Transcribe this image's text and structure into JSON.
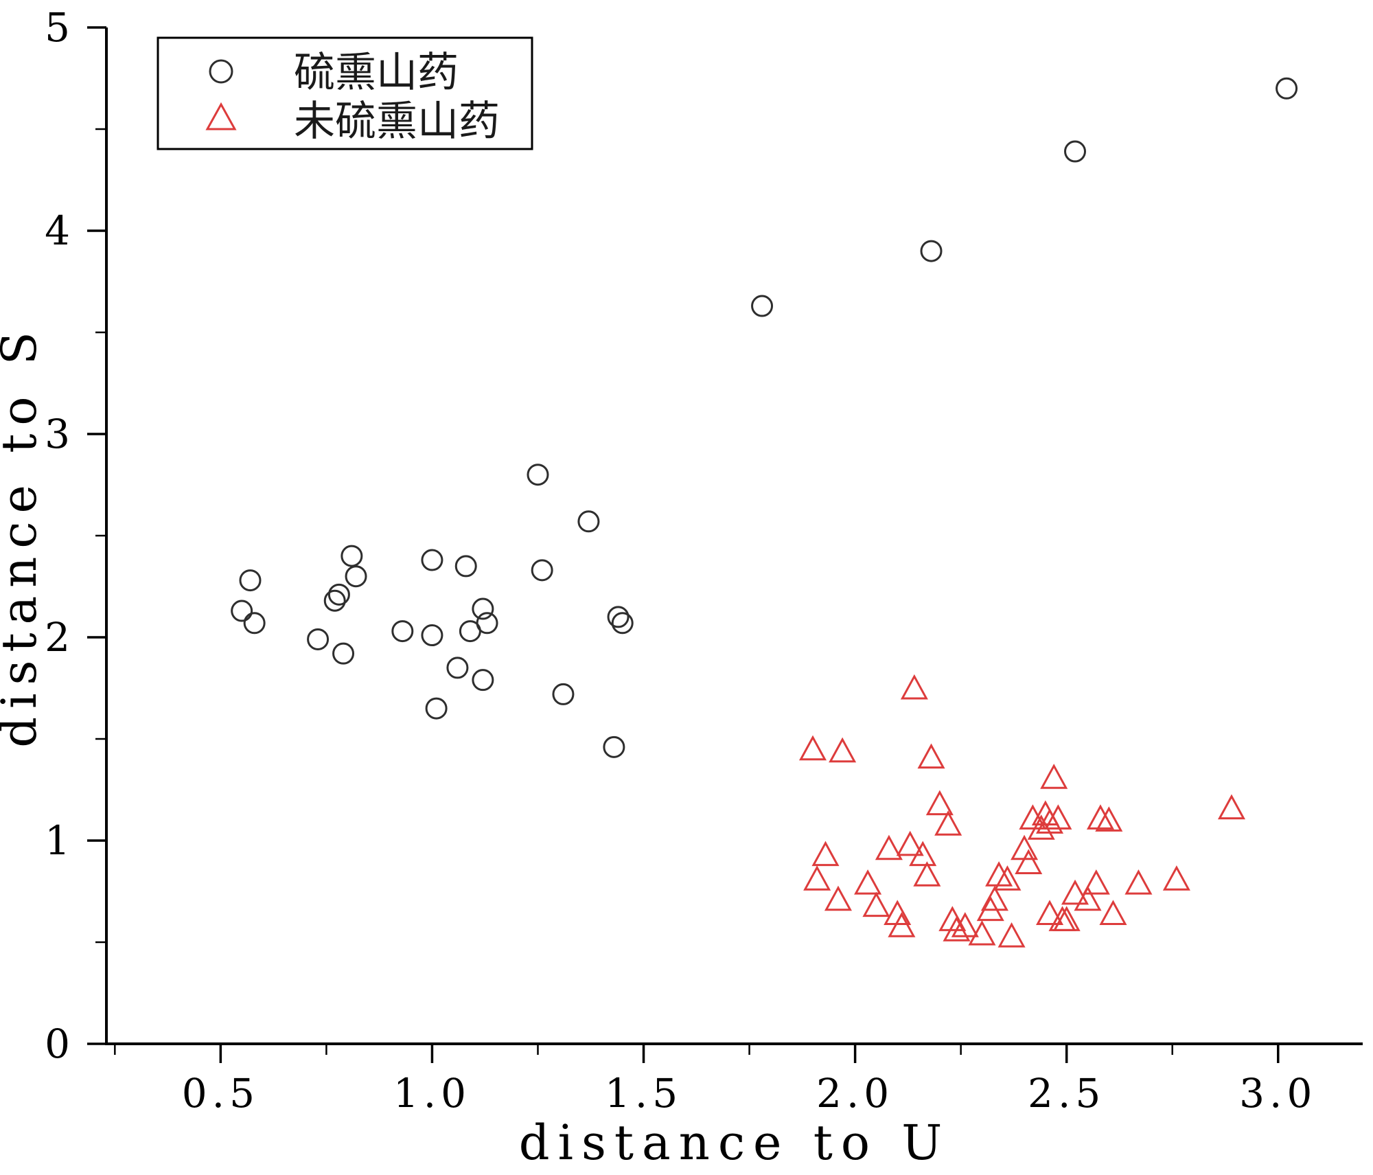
{
  "figure": {
    "background": "#ffffff",
    "axis_color": "#000000"
  },
  "chart_data": {
    "type": "scatter",
    "title": "",
    "xlabel": "distance to U",
    "ylabel": "distance to S",
    "xlim": [
      0.23,
      3.2
    ],
    "ylim": [
      0,
      5
    ],
    "x_ticks": [
      0.5,
      1.0,
      1.5,
      2.0,
      2.5,
      3.0
    ],
    "y_ticks": [
      0,
      1,
      2,
      3,
      4,
      5
    ],
    "x_minor_step": 0.25,
    "y_minor_step": 0.5,
    "grid": false,
    "legend_position": "top-left",
    "series": [
      {
        "name": "硫熏山药",
        "marker": "circle",
        "color": "#2e2e2e",
        "points": [
          [
            0.55,
            2.13
          ],
          [
            0.57,
            2.28
          ],
          [
            0.58,
            2.07
          ],
          [
            0.73,
            1.99
          ],
          [
            0.77,
            2.18
          ],
          [
            0.78,
            2.21
          ],
          [
            0.79,
            1.92
          ],
          [
            0.81,
            2.4
          ],
          [
            0.82,
            2.3
          ],
          [
            0.93,
            2.03
          ],
          [
            1.0,
            2.38
          ],
          [
            1.0,
            2.01
          ],
          [
            1.01,
            1.65
          ],
          [
            1.06,
            1.85
          ],
          [
            1.08,
            2.35
          ],
          [
            1.09,
            2.03
          ],
          [
            1.12,
            1.79
          ],
          [
            1.12,
            2.14
          ],
          [
            1.13,
            2.07
          ],
          [
            1.25,
            2.8
          ],
          [
            1.26,
            2.33
          ],
          [
            1.31,
            1.72
          ],
          [
            1.37,
            2.57
          ],
          [
            1.43,
            1.46
          ],
          [
            1.44,
            2.1
          ],
          [
            1.45,
            2.07
          ],
          [
            1.78,
            3.63
          ],
          [
            2.18,
            3.9
          ],
          [
            2.52,
            4.39
          ],
          [
            3.02,
            4.7
          ]
        ]
      },
      {
        "name": "未硫熏山药",
        "marker": "triangle",
        "color": "#dd3c3c",
        "points": [
          [
            1.9,
            1.44
          ],
          [
            1.97,
            1.43
          ],
          [
            1.91,
            0.8
          ],
          [
            1.93,
            0.92
          ],
          [
            1.96,
            0.7
          ],
          [
            2.03,
            0.78
          ],
          [
            2.05,
            0.67
          ],
          [
            2.08,
            0.95
          ],
          [
            2.1,
            0.63
          ],
          [
            2.11,
            0.57
          ],
          [
            2.13,
            0.97
          ],
          [
            2.14,
            1.74
          ],
          [
            2.16,
            0.92
          ],
          [
            2.17,
            0.82
          ],
          [
            2.18,
            1.4
          ],
          [
            2.2,
            1.17
          ],
          [
            2.22,
            1.07
          ],
          [
            2.23,
            0.6
          ],
          [
            2.24,
            0.55
          ],
          [
            2.26,
            0.57
          ],
          [
            2.3,
            0.53
          ],
          [
            2.32,
            0.65
          ],
          [
            2.33,
            0.7
          ],
          [
            2.34,
            0.82
          ],
          [
            2.36,
            0.8
          ],
          [
            2.37,
            0.52
          ],
          [
            2.4,
            0.95
          ],
          [
            2.41,
            0.88
          ],
          [
            2.42,
            1.1
          ],
          [
            2.44,
            1.05
          ],
          [
            2.45,
            1.12
          ],
          [
            2.46,
            1.08
          ],
          [
            2.46,
            0.63
          ],
          [
            2.47,
            1.3
          ],
          [
            2.48,
            1.1
          ],
          [
            2.49,
            0.6
          ],
          [
            2.5,
            0.6
          ],
          [
            2.52,
            0.73
          ],
          [
            2.55,
            0.7
          ],
          [
            2.57,
            0.78
          ],
          [
            2.58,
            1.1
          ],
          [
            2.6,
            1.09
          ],
          [
            2.61,
            0.63
          ],
          [
            2.67,
            0.78
          ],
          [
            2.76,
            0.8
          ],
          [
            2.89,
            1.15
          ]
        ]
      }
    ]
  }
}
